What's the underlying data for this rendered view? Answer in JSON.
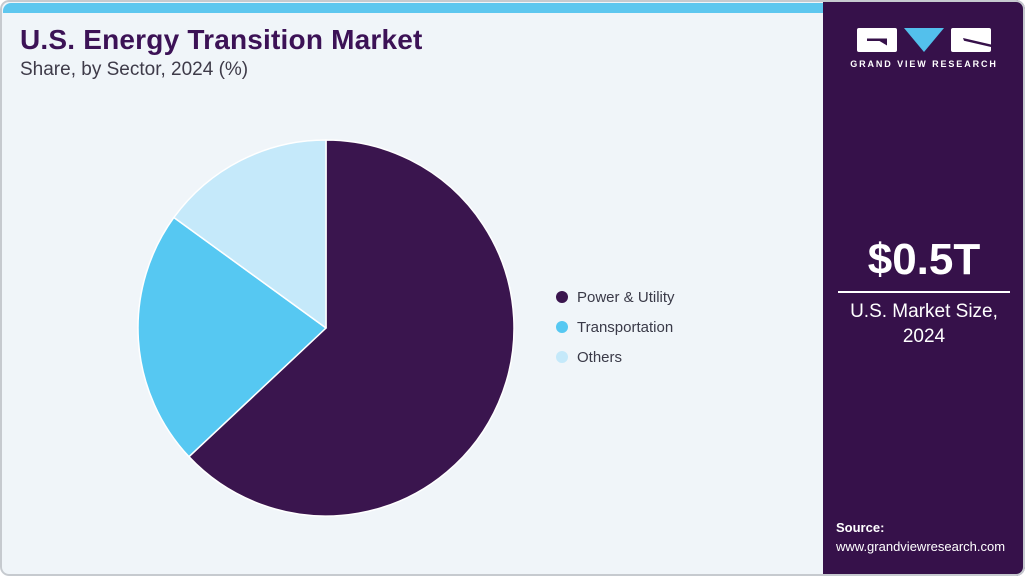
{
  "header": {
    "title": "U.S. Energy Transition Market",
    "subtitle": "Share, by Sector, 2024 (%)"
  },
  "chart_data": {
    "type": "pie",
    "title": "U.S. Energy Transition Market Share, by Sector, 2024 (%)",
    "unit": "%",
    "start_angle_deg": 0,
    "direction": "clockwise",
    "legend_position": "right",
    "slices": [
      {
        "label": "Power & Utility",
        "value": 63,
        "color": "#3A154E"
      },
      {
        "label": "Transportation",
        "value": 22,
        "color": "#56C8F2"
      },
      {
        "label": "Others",
        "value": 15,
        "color": "#C5E9FA"
      }
    ]
  },
  "sidebar": {
    "logo_text": "GRAND VIEW RESEARCH",
    "market_size_value": "$0.5T",
    "market_size_label_line1": "U.S. Market Size,",
    "market_size_label_line2": "2024",
    "source_label": "Source:",
    "source_url": "www.grandviewresearch.com"
  },
  "colors": {
    "accent_bar": "#5EC7EF",
    "panel_background": "#F0F5F9",
    "sidebar_background": "#36114A",
    "title_text": "#3C1256",
    "body_text": "#3E3B49",
    "logo_triangle": "#53C0EC",
    "pie_slice_border": "#FFFFFF"
  }
}
